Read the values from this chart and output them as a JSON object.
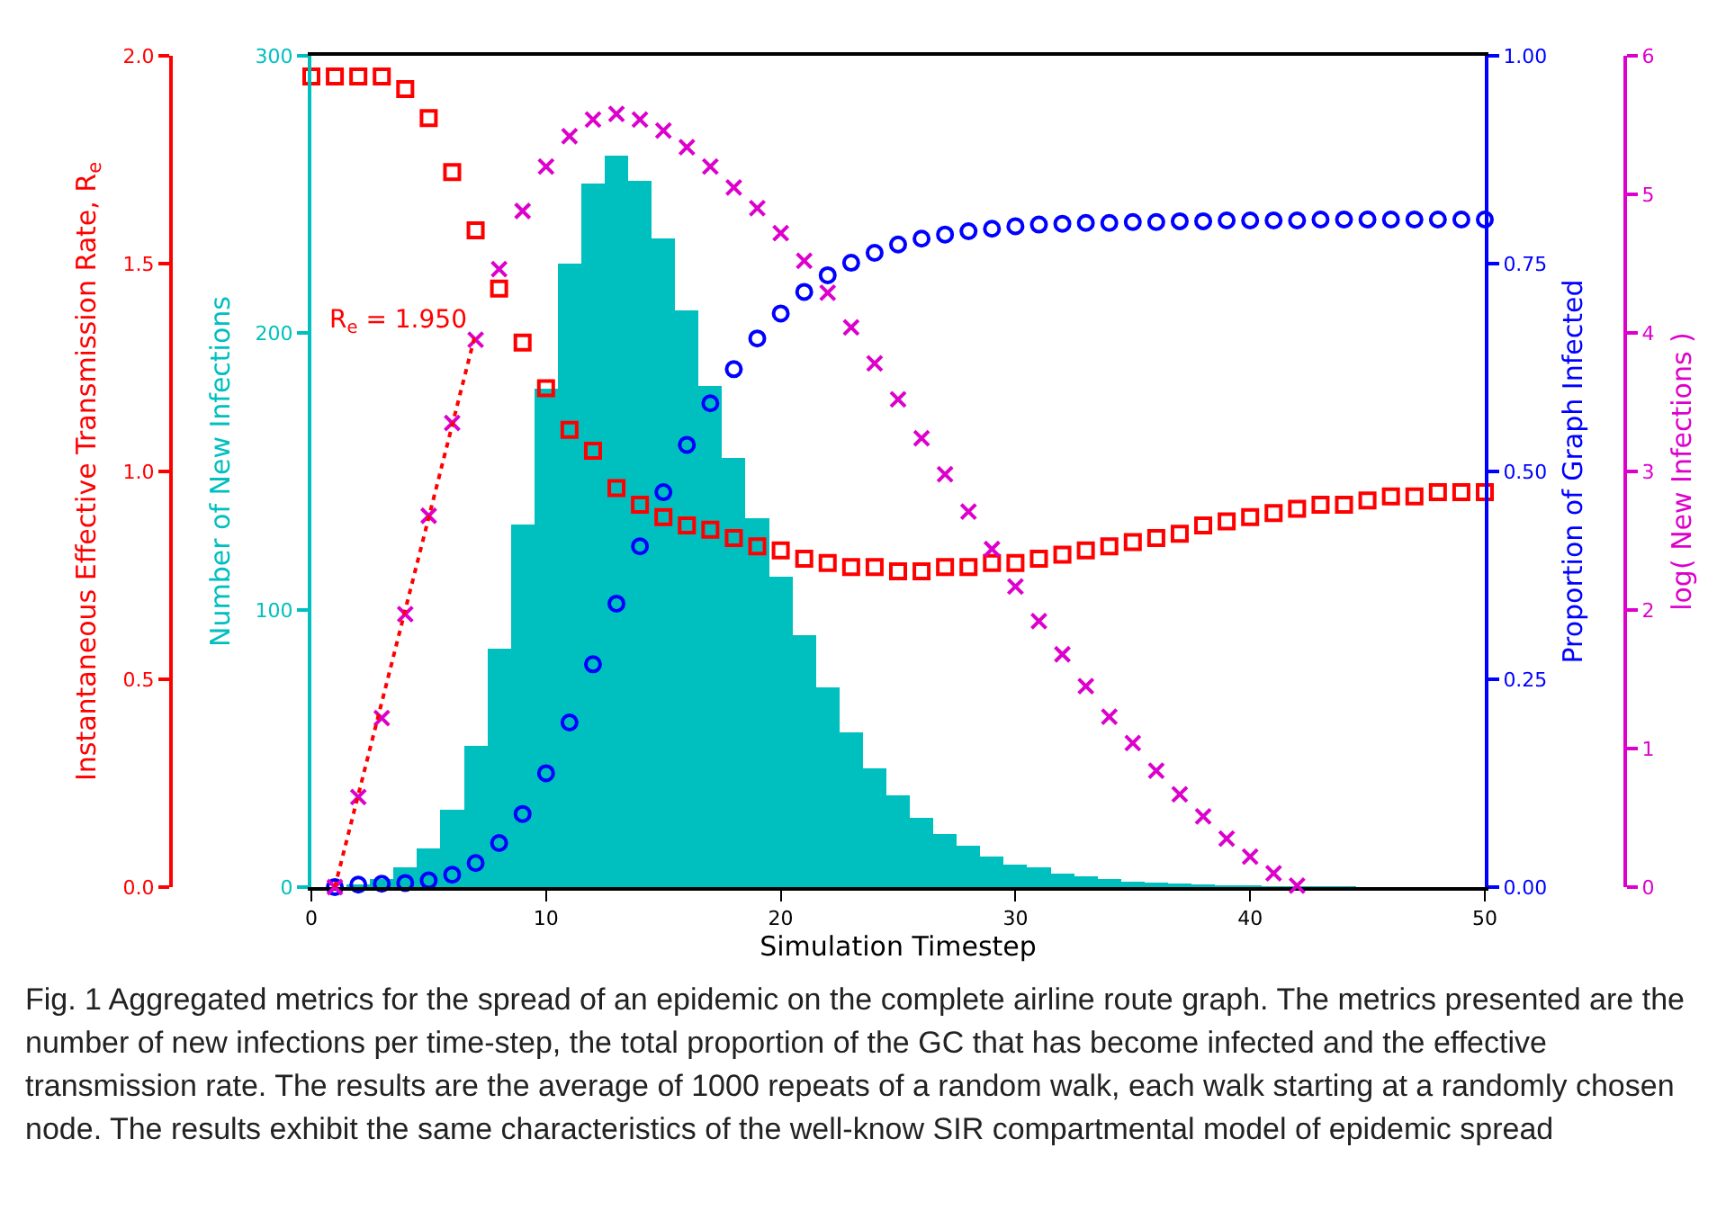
{
  "chart_data": [
    {
      "type": "bar",
      "xlabel": "Simulation Timestep",
      "ylabel": "Number of New Infections",
      "y2label": "Instantaneous Effective Transmission Rate, R$_{e}$",
      "y3label": "Proportion of Graph Infected",
      "x": [
        0,
        1,
        2,
        3,
        4,
        5,
        6,
        7,
        8,
        9,
        10,
        11,
        12,
        13,
        14,
        15,
        16,
        17,
        18,
        19,
        20,
        21,
        22,
        23,
        24,
        25,
        26,
        27,
        28,
        29,
        30,
        31,
        32,
        33,
        34,
        35,
        36,
        37,
        38,
        39,
        40,
        41,
        42,
        43,
        44,
        45,
        46,
        47,
        48,
        49,
        50
      ],
      "xlim": [
        0,
        50
      ],
      "xticks": [
        0,
        10,
        20,
        30,
        40,
        50
      ],
      "ylim": [
        0,
        300
      ],
      "yticks": [
        0,
        100,
        200,
        300
      ],
      "y2lim": [
        0,
        2.0
      ],
      "y2ticks": [
        {
          "value": 0,
          "label": "0.0"
        },
        {
          "value": 0.5,
          "label": "0.5"
        },
        {
          "value": 1,
          "label": "1.0"
        },
        {
          "value": 1.5,
          "label": "1.5"
        },
        {
          "value": 2,
          "label": "2.0"
        }
      ],
      "y3lim": [
        0,
        1.0
      ],
      "y3ticks": [
        {
          "value": 0,
          "label": "0.00"
        },
        {
          "value": 0.25,
          "label": "0.25"
        },
        {
          "value": 0.5,
          "label": "0.50"
        },
        {
          "value": 0.75,
          "label": "0.75"
        },
        {
          "value": 1,
          "label": "1.00"
        }
      ],
      "grid": false,
      "series": [
        {
          "color": "#00bfbf",
          "values": [
            0,
            0,
            1,
            3,
            7,
            14,
            28,
            51,
            86,
            131,
            180,
            225,
            254,
            264,
            255,
            234,
            208,
            181,
            155,
            133,
            112,
            91,
            72,
            56,
            43,
            33,
            25,
            19,
            15,
            11,
            8,
            7,
            5,
            4,
            3,
            2,
            1.7,
            1.3,
            1,
            0.7,
            0.5,
            0.4,
            0.3,
            0.2,
            0.2,
            null,
            null,
            null,
            0,
            0,
            0
          ]
        },
        {
          "type": "scatter",
          "axis": "y2",
          "color": "#ff0000",
          "marker": "square",
          "values": [
            1.95,
            1.95,
            1.95,
            1.95,
            1.92,
            1.85,
            1.72,
            1.58,
            1.44,
            1.31,
            1.2,
            1.1,
            1.05,
            0.96,
            0.92,
            0.89,
            0.87,
            0.86,
            0.84,
            0.82,
            0.81,
            0.79,
            0.78,
            0.77,
            0.77,
            0.76,
            0.76,
            0.77,
            0.77,
            0.78,
            0.78,
            0.79,
            0.8,
            0.81,
            0.82,
            0.83,
            0.84,
            0.85,
            0.87,
            0.88,
            0.89,
            0.9,
            0.91,
            0.92,
            0.92,
            0.93,
            0.94,
            0.94,
            0.95,
            0.95,
            0.95
          ]
        },
        {
          "type": "scatter",
          "axis": "y3",
          "color": "#0000ff",
          "marker": "circle",
          "x": [
            1,
            2,
            3,
            4,
            5,
            6,
            7,
            8,
            9,
            10,
            11,
            12,
            13,
            14,
            15,
            16,
            17,
            18,
            19,
            20,
            21,
            22,
            23,
            24,
            25,
            26,
            27,
            28,
            29,
            30,
            31,
            32,
            33,
            34,
            35,
            36,
            37,
            38,
            39,
            40,
            41,
            42,
            43,
            44,
            45,
            46,
            47,
            48,
            49,
            50
          ],
          "values": [
            0,
            0.003,
            0.004,
            0.005,
            0.008,
            0.015,
            0.029,
            0.053,
            0.088,
            0.137,
            0.198,
            0.268,
            0.341,
            0.41,
            0.475,
            0.532,
            0.582,
            0.623,
            0.66,
            0.69,
            0.716,
            0.736,
            0.751,
            0.763,
            0.773,
            0.78,
            0.785,
            0.789,
            0.792,
            0.795,
            0.797,
            0.798,
            0.799,
            0.799,
            0.8,
            0.8,
            0.801,
            0.801,
            0.802,
            0.802,
            0.802,
            0.802,
            0.803,
            0.803,
            0.803,
            0.803,
            0.803,
            0.803,
            0.803,
            0.803
          ]
        }
      ],
      "annotations": [
        "Fig. 1 Aggregated metrics for the spread of an epidemic on the complete airline route graph. The metrics presented are the number of new infections per time-step, the total proportion of the GC that has become infected and the effective transmission rate. The results are the average of 1000 repeats of a random walk, each walk starting at a randomly chosen node. The results exhibit the same characteristics of the well-know SIR compartmental model of epidemic spread"
      ]
    },
    {
      "type": "scatter",
      "ylabel": "log( New Infections )",
      "xlim": [
        0,
        50
      ],
      "ylim": [
        0,
        6
      ],
      "yticks": [
        0,
        1,
        2,
        3,
        4,
        5,
        6
      ],
      "tick_labels": "y",
      "grid": false,
      "series": [
        {
          "color": "#dd00cc",
          "marker": "cross",
          "x": [
            1,
            2,
            3,
            4,
            5,
            6,
            7,
            8,
            9,
            10,
            11,
            12,
            13,
            14,
            15,
            16,
            17,
            18,
            19,
            20,
            21,
            22,
            23,
            24,
            25,
            26,
            27,
            28,
            29,
            30,
            31,
            32,
            33,
            34,
            35,
            36,
            37,
            38,
            39,
            40,
            41,
            42
          ],
          "values": [
            0,
            0.65,
            1.22,
            1.97,
            2.68,
            3.35,
            3.95,
            4.46,
            4.88,
            5.2,
            5.42,
            5.54,
            5.58,
            5.54,
            5.46,
            5.34,
            5.2,
            5.05,
            4.9,
            4.72,
            4.52,
            4.29,
            4.04,
            3.78,
            3.52,
            3.24,
            2.98,
            2.71,
            2.44,
            2.17,
            1.92,
            1.68,
            1.45,
            1.23,
            1.04,
            0.84,
            0.67,
            0.51,
            0.35,
            0.22,
            0.1,
            0.01
          ]
        },
        {
          "type": "line",
          "color": "#ff0000",
          "line_style": "dotted",
          "marker": "none",
          "x": [
            1,
            7
          ],
          "values": [
            0,
            4.0
          ]
        }
      ],
      "annotations": [
        "R$_{e}$ = 1.950"
      ]
    }
  ]
}
